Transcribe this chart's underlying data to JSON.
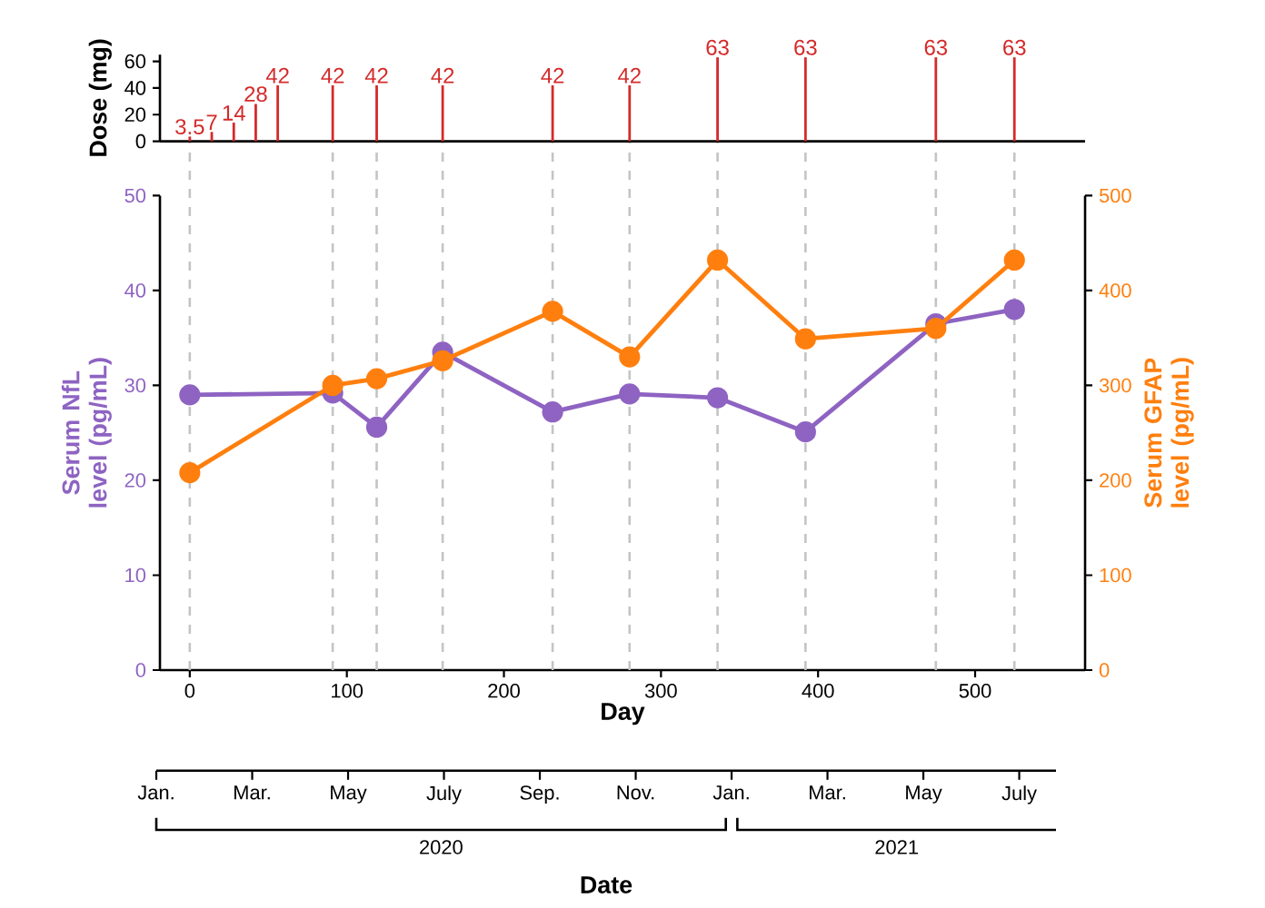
{
  "chart_data": {
    "type": "line",
    "xlabel": "Day",
    "ylabel": "Serum NfL level (pg/mL)",
    "y2label": "Serum GFAP level (pg/mL)",
    "y3label": "Dose (mg)",
    "x2label": "Date",
    "x": [
      0,
      91,
      119,
      161,
      231,
      280,
      336,
      392,
      475,
      525
    ],
    "series": [
      {
        "type": "bar",
        "axis": "y3",
        "color": "#d42a2a",
        "x": [
          0,
          14,
          28,
          42,
          56,
          91,
          119,
          161,
          231,
          280,
          336,
          392,
          475,
          525
        ],
        "values": [
          3.5,
          7,
          14,
          28,
          42,
          42,
          42,
          42,
          42,
          42,
          63,
          63,
          63,
          63
        ],
        "value_labels": [
          "3.5",
          "7",
          "14",
          "28",
          "42",
          "42",
          "42",
          "42",
          "42",
          "42",
          "63",
          "63",
          "63",
          "63"
        ]
      },
      {
        "color": "#8e63c2",
        "values": [
          29.0,
          29.2,
          25.6,
          33.5,
          27.2,
          29.1,
          28.7,
          25.1,
          36.5,
          38.0
        ]
      },
      {
        "color": "#ff7f0e",
        "axis": "y2",
        "values": [
          208,
          300,
          307,
          326,
          378,
          330,
          432,
          349,
          360,
          432
        ]
      }
    ],
    "marker": "circle",
    "xlim": [
      -19,
      570
    ],
    "xticks": [
      0,
      100,
      200,
      300,
      400,
      500
    ],
    "ylim": [
      0,
      50
    ],
    "yticks": [
      0,
      10,
      20,
      30,
      40,
      50
    ],
    "y2lim": [
      0,
      500
    ],
    "y2ticks": [
      0,
      100,
      200,
      300,
      400,
      500
    ],
    "y3lim": [
      0,
      65
    ],
    "y3ticks": [
      0,
      20,
      40,
      60
    ],
    "x2lim": [
      "2020-01",
      "2021-07-24"
    ],
    "x2ticks": [
      {
        "value": "2020-01",
        "label": "Jan."
      },
      {
        "value": "2020-03",
        "label": "Mar."
      },
      {
        "value": "2020-05",
        "label": "May"
      },
      {
        "value": "2020-07",
        "label": "July"
      },
      {
        "value": "2020-09",
        "label": "Sep."
      },
      {
        "value": "2020-11",
        "label": "Nov."
      },
      {
        "value": "2021-01",
        "label": "Jan."
      },
      {
        "value": "2021-03",
        "label": "Mar."
      },
      {
        "value": "2021-05",
        "label": "May"
      },
      {
        "value": "2021-07",
        "label": "July"
      }
    ],
    "annotations": [
      "2020",
      "2021"
    ],
    "ref_lines": [
      {
        "axis": "x",
        "value": 0,
        "color": "#c4c4c4",
        "line_style": "dashed"
      },
      {
        "axis": "x",
        "value": 91,
        "color": "#c4c4c4",
        "line_style": "dashed"
      },
      {
        "axis": "x",
        "value": 119,
        "color": "#c4c4c4",
        "line_style": "dashed"
      },
      {
        "axis": "x",
        "value": 161,
        "color": "#c4c4c4",
        "line_style": "dashed"
      },
      {
        "axis": "x",
        "value": 231,
        "color": "#c4c4c4",
        "line_style": "dashed"
      },
      {
        "axis": "x",
        "value": 280,
        "color": "#c4c4c4",
        "line_style": "dashed"
      },
      {
        "axis": "x",
        "value": 336,
        "color": "#c4c4c4",
        "line_style": "dashed"
      },
      {
        "axis": "x",
        "value": 392,
        "color": "#c4c4c4",
        "line_style": "dashed"
      },
      {
        "axis": "x",
        "value": 475,
        "color": "#c4c4c4",
        "line_style": "dashed"
      },
      {
        "axis": "x",
        "value": 525,
        "color": "#c4c4c4",
        "line_style": "dashed"
      }
    ]
  }
}
